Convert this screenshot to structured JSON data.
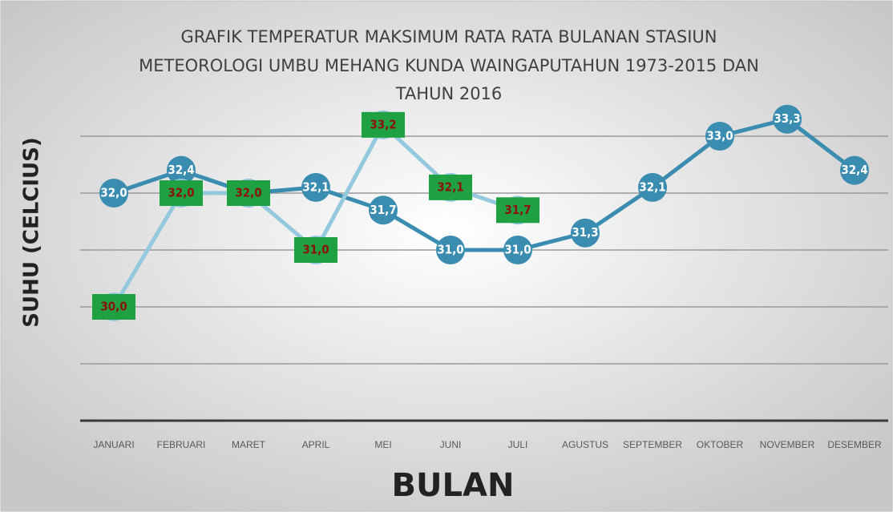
{
  "chart_data": {
    "type": "line",
    "title": [
      "GRAFIK TEMPERATUR MAKSIMUM RATA RATA BULANAN STASIUN",
      "METEOROLOGI UMBU MEHANG KUNDA WAINGAPUTAHUN 1973-2015 DAN",
      "TAHUN 2016"
    ],
    "x_label": "BULAN",
    "y_label": "SUHU (CELCIUS)",
    "categories": [
      "JANUARI",
      "FEBRUARI",
      "MARET",
      "APRIL",
      "MEI",
      "JUNI",
      "JULI",
      "AGUSTUS",
      "SEPTEMBER",
      "OKTOBER",
      "NOVEMBER",
      "DESEMBER"
    ],
    "series": [
      {
        "color": "#3a8db0",
        "values": [
          32.0,
          32.4,
          32.0,
          32.1,
          31.7,
          31.0,
          31.0,
          31.3,
          32.1,
          33.0,
          33.3,
          32.4
        ],
        "value_labels": [
          "32,0",
          "32,4",
          "32,0",
          "32,1",
          "31,7",
          "31,0",
          "31,0",
          "31,3",
          "32,1",
          "33,0",
          "33,3",
          "32,4"
        ]
      },
      {
        "color": "#93c8dd",
        "values": [
          30.0,
          32.0,
          32.0,
          31.0,
          33.2,
          32.1,
          31.7,
          null,
          null,
          null,
          null,
          null
        ],
        "value_labels": [
          "30,0",
          "32,0",
          "32,0",
          "31,0",
          "33,2",
          "32,1",
          "31,7",
          null,
          null,
          null,
          null,
          null
        ]
      }
    ],
    "ylim": [
      28,
      34
    ],
    "yticks": [
      29,
      30,
      31,
      32,
      33
    ],
    "grid": true
  }
}
